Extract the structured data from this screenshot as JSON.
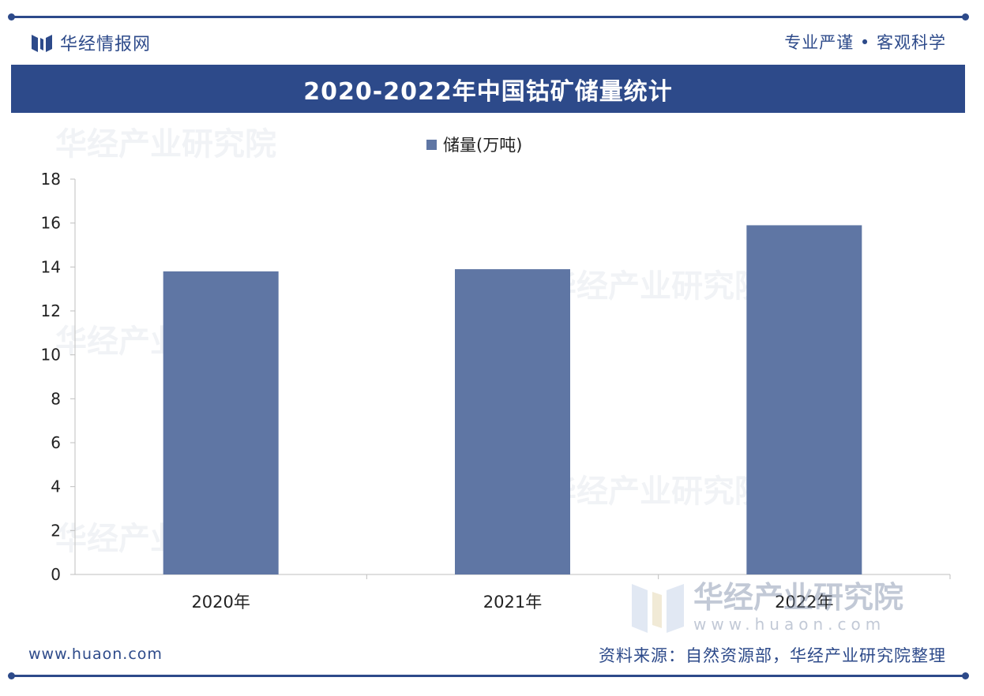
{
  "header": {
    "brand_name": "华经情报网",
    "slogan": "专业严谨 • 客观科学"
  },
  "chart_data": {
    "type": "bar",
    "title": "2020-2022年中国钴矿储量统计",
    "categories": [
      "2020年",
      "2021年",
      "2022年"
    ],
    "series": [
      {
        "name": "储量(万吨)",
        "values": [
          13.8,
          13.9,
          15.9
        ]
      }
    ],
    "ylim": [
      0,
      18
    ],
    "yticks": [
      0,
      2,
      4,
      6,
      8,
      10,
      12,
      14,
      16,
      18
    ],
    "bar_color": "#5f76a4",
    "legend_position": "top-center",
    "grid": false
  },
  "footer": {
    "url": "www.huaon.com",
    "source": "资料来源：自然资源部，华经产业研究院整理"
  },
  "watermark": {
    "text": "华经产业研究院",
    "url": "www.huaon.com"
  },
  "colors": {
    "brand": "#2d4a8a",
    "bar": "#5f76a4"
  }
}
